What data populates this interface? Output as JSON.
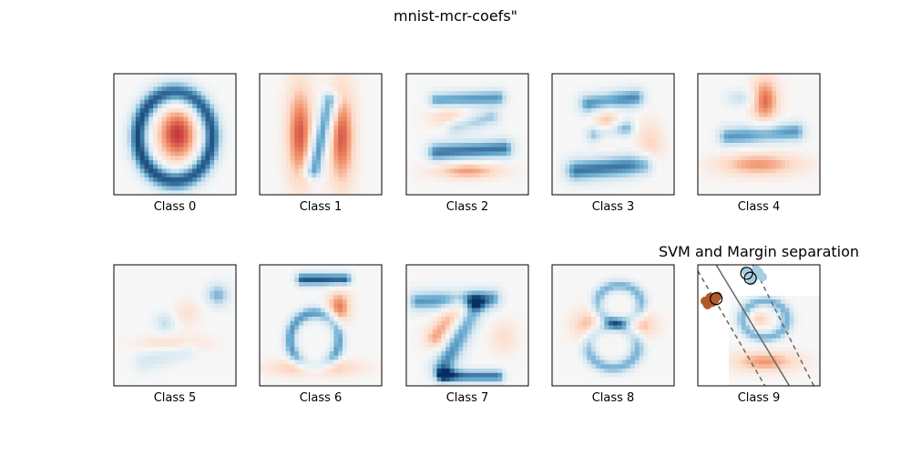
{
  "chart_data": {
    "type": "heatmap",
    "title": "mnist-mcr-coefs\"",
    "colormap": "RdBu",
    "ticks_shown": false,
    "panels": [
      {
        "xlabel": "Class 0",
        "digit": 0
      },
      {
        "xlabel": "Class 1",
        "digit": 1
      },
      {
        "xlabel": "Class 2",
        "digit": 2
      },
      {
        "xlabel": "Class 3",
        "digit": 3
      },
      {
        "xlabel": "Class 4",
        "digit": 4
      },
      {
        "xlabel": "Class 5",
        "digit": 5
      },
      {
        "xlabel": "Class 6",
        "digit": 6
      },
      {
        "xlabel": "Class 7",
        "digit": 7
      },
      {
        "xlabel": "Class 8",
        "digit": 8
      },
      {
        "xlabel": "Class 9",
        "digit": 9,
        "overlay_title": "SVM and Margin separation"
      }
    ],
    "overlay": {
      "type": "scatter",
      "title": "SVM and Margin separation",
      "xlim": [
        0,
        10
      ],
      "ylim": [
        0,
        10
      ],
      "clusters": [
        {
          "color": "#a6cee3",
          "points": [
            [
              4.2,
              9.2
            ],
            [
              4.6,
              9.0
            ],
            [
              5.0,
              9.4
            ],
            [
              4.4,
              8.7
            ],
            [
              5.3,
              9.0
            ],
            [
              4.8,
              9.6
            ],
            [
              3.9,
              9.5
            ]
          ]
        },
        {
          "color": "#b15928",
          "points": [
            [
              0.6,
              7.0
            ],
            [
              1.0,
              7.3
            ],
            [
              1.4,
              7.1
            ],
            [
              0.8,
              6.7
            ],
            [
              1.2,
              6.9
            ],
            [
              1.6,
              7.4
            ]
          ]
        }
      ],
      "support_vectors": [
        [
          4.0,
          9.3
        ],
        [
          4.3,
          8.9
        ],
        [
          1.5,
          7.2
        ]
      ],
      "decision_line": [
        [
          1.5,
          10
        ],
        [
          7.5,
          0
        ]
      ],
      "margin_lines": [
        [
          [
            0,
            9.5
          ],
          [
            5.5,
            0
          ]
        ],
        [
          [
            4.5,
            10
          ],
          [
            9.5,
            0
          ]
        ]
      ]
    }
  }
}
